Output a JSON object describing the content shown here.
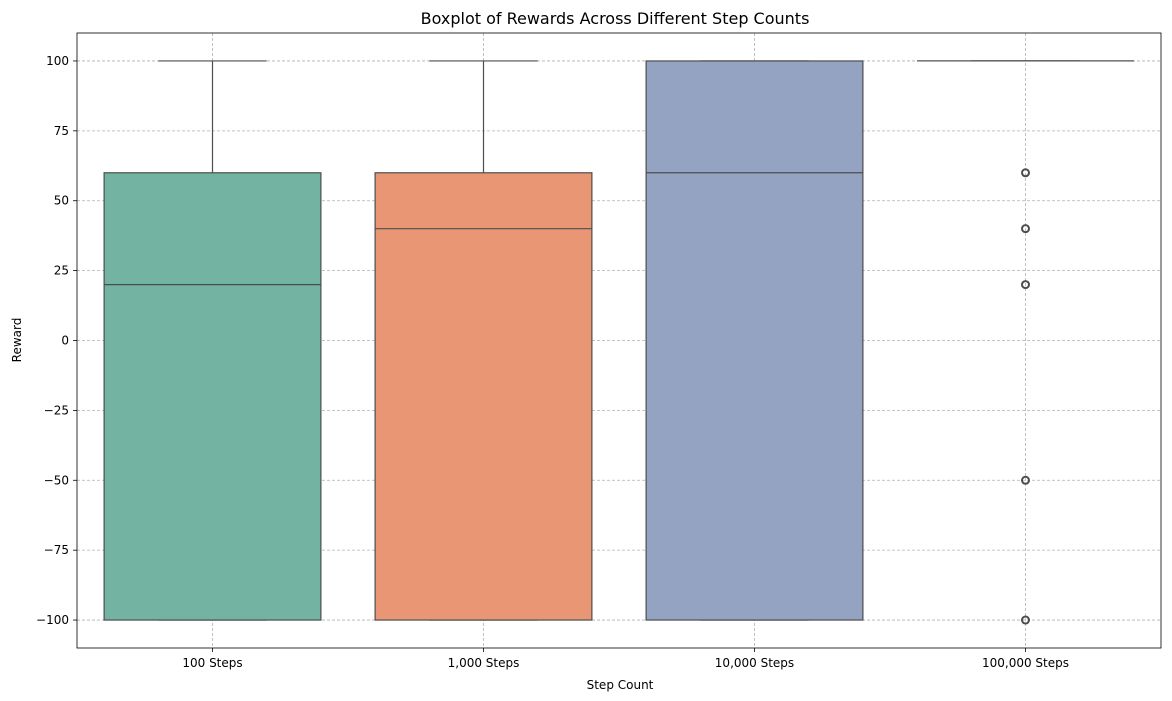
{
  "chart_data": {
    "type": "box",
    "title": "Boxplot of Rewards Across Different Step Counts",
    "xlabel": "Step Count",
    "ylabel": "Reward",
    "ylim": [
      -110,
      110
    ],
    "yticks": [
      -100,
      -75,
      -50,
      -25,
      0,
      25,
      50,
      75,
      100
    ],
    "ytick_labels": [
      "−100",
      "−75",
      "−50",
      "−25",
      "0",
      "25",
      "50",
      "75",
      "100"
    ],
    "grid": true,
    "categories": [
      "100 Steps",
      "1,000 Steps",
      "10,000 Steps",
      "100,000 Steps"
    ],
    "boxes": [
      {
        "name": "100 Steps",
        "whisker_low": -100,
        "q1": -100,
        "median": 20,
        "q3": 60,
        "whisker_high": 100,
        "outliers": [],
        "color": "#73b3a1"
      },
      {
        "name": "1,000 Steps",
        "whisker_low": -100,
        "q1": -100,
        "median": 40,
        "q3": 60,
        "whisker_high": 100,
        "outliers": [],
        "color": "#e99675"
      },
      {
        "name": "10,000 Steps",
        "whisker_low": -100,
        "q1": -100,
        "median": 60,
        "q3": 100,
        "whisker_high": 100,
        "outliers": [],
        "color": "#95a3c2"
      },
      {
        "name": "100,000 Steps",
        "whisker_low": 100,
        "q1": 100,
        "median": 100,
        "q3": 100,
        "whisker_high": 100,
        "outliers": [
          60,
          40,
          20,
          -50,
          -100
        ],
        "color": "#c9c0d8"
      }
    ]
  }
}
